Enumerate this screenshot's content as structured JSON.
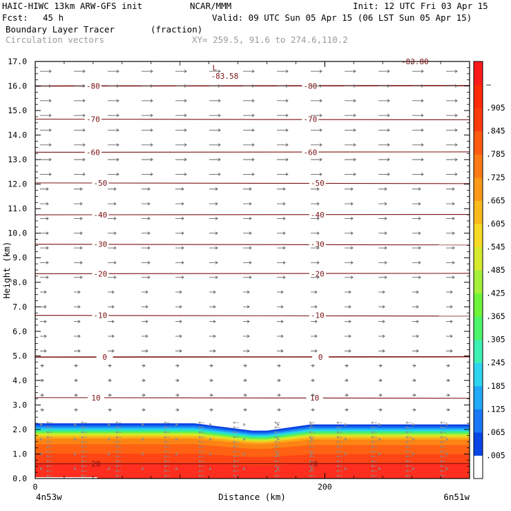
{
  "header": {
    "model": "HAIC-HIWC 13km ARW-GFS init",
    "org": "NCAR/MMM",
    "fcst_label": "Fcst:",
    "fcst_value": "45 h",
    "init": "Init: 12 UTC Fri 03 Apr 15",
    "valid": "Valid: 09 UTC Sun 05 Apr 15 (06 LST Sun 05 Apr 15)",
    "field1_name": "Boundary Layer Tracer",
    "field1_units": "(fraction)",
    "field2_name": "Circulation vectors",
    "xy_range": "XY= 259.5, 91.6 to 274.6,110.2"
  },
  "chart_data": {
    "type": "heatmap",
    "xlabel": "Distance (km)",
    "ylabel": "Height (km)",
    "xlim": [
      0,
      300
    ],
    "ylim": [
      0,
      17
    ],
    "x_ticks": [
      {
        "value": 0,
        "label": "0"
      },
      {
        "value": 200,
        "label": "200"
      }
    ],
    "x_end_labels": {
      "left": "4n53w",
      "right": "6n51w"
    },
    "y_ticks": [
      "0.0",
      "1.0",
      "2.0",
      "3.0",
      "4.0",
      "5.0",
      "6.0",
      "7.0",
      "8.0",
      "9.0",
      "10.0",
      "11.0",
      "12.0",
      "13.0",
      "14.0",
      "15.0",
      "16.0",
      "17.0"
    ],
    "colorbar": {
      "labels": [
        ".005",
        ".065",
        ".125",
        ".185",
        ".245",
        ".305",
        ".365",
        ".425",
        ".485",
        ".545",
        ".605",
        ".665",
        ".725",
        ".785",
        ".845",
        ".905",
        "–"
      ],
      "colors": [
        "#ffffff",
        "#0a46e6",
        "#1a78f5",
        "#21a9fa",
        "#2fd4f0",
        "#3ef0b4",
        "#4cf56a",
        "#6ef53a",
        "#a4f03a",
        "#d6ea2e",
        "#f7da24",
        "#faba1c",
        "#fc9818",
        "#fd7a14",
        "#fe5a10",
        "#fe3a0c",
        "#fe2a08",
        "#ff1a1a"
      ]
    },
    "tracer_layer": {
      "top_km_left": 2.25,
      "top_km_center": 1.95,
      "top_km_right": 2.2
    },
    "contour_lines": [
      {
        "label": "-80",
        "value": -80,
        "y_km": 16.0,
        "label_x": [
          40,
          190
        ]
      },
      {
        "label": "-70",
        "value": -70,
        "y_km": 14.65,
        "label_x": [
          40,
          190
        ]
      },
      {
        "label": "-60",
        "value": -60,
        "y_km": 13.3,
        "label_x": [
          40,
          190
        ]
      },
      {
        "label": "-50",
        "value": -50,
        "y_km": 12.05,
        "label_x": [
          45,
          195
        ]
      },
      {
        "label": "-40",
        "value": -40,
        "y_km": 10.75,
        "label_x": [
          45,
          195
        ]
      },
      {
        "label": "-30",
        "value": -30,
        "y_km": 9.55,
        "label_x": [
          45,
          195
        ]
      },
      {
        "label": "-20",
        "value": -20,
        "y_km": 8.35,
        "label_x": [
          45,
          195
        ]
      },
      {
        "label": "-10",
        "value": -10,
        "y_km": 6.65,
        "label_x": [
          45,
          195
        ]
      },
      {
        "label": "0",
        "value": 0,
        "y_km": 4.95,
        "label_x": [
          48,
          197
        ]
      },
      {
        "label": "10",
        "value": 10,
        "y_km": 3.3,
        "label_x": [
          42,
          193
        ]
      },
      {
        "label": "20",
        "value": 20,
        "y_km": 0.6,
        "label_x": [
          42,
          192
        ]
      }
    ],
    "low_marker": {
      "symbol": "L",
      "value": "-83.58",
      "x_km": 130,
      "y_km": 16.6
    },
    "corner_value": "-83.80"
  }
}
